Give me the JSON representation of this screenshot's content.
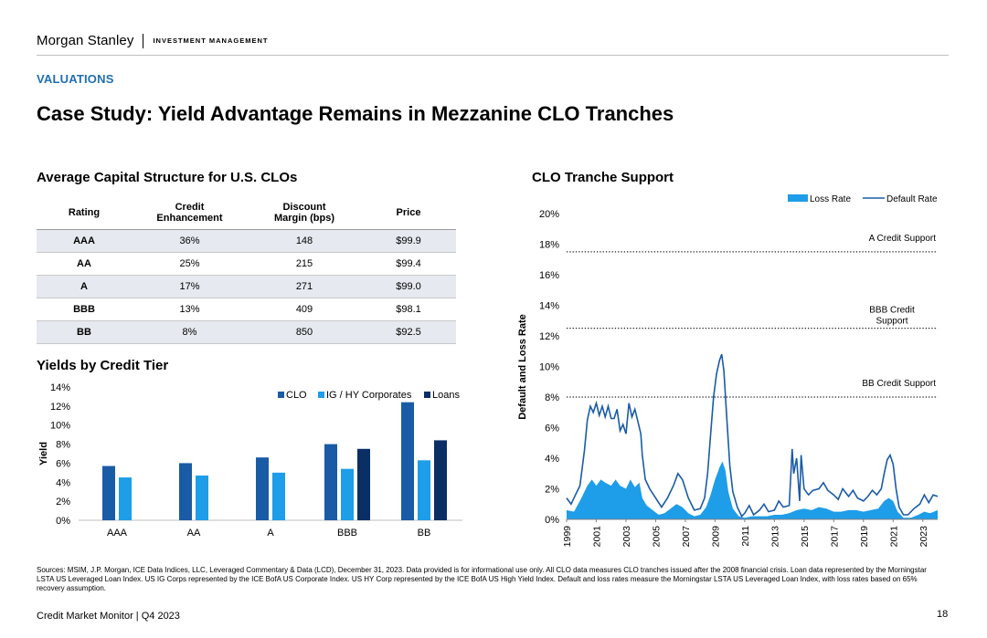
{
  "header": {
    "brand": "Morgan Stanley",
    "division": "INVESTMENT MANAGEMENT"
  },
  "section_label": "VALUATIONS",
  "page_title": "Case Study: Yield Advantage Remains in Mezzanine CLO Tranches",
  "table": {
    "title": "Average Capital Structure for U.S. CLOs",
    "headers": [
      "Rating",
      "Credit\nEnhancement",
      "Discount\nMargin (bps)",
      "Price"
    ],
    "rows": [
      [
        "AAA",
        "36%",
        "148",
        "$99.9"
      ],
      [
        "AA",
        "25%",
        "215",
        "$99.4"
      ],
      [
        "A",
        "17%",
        "271",
        "$99.0"
      ],
      [
        "BBB",
        "13%",
        "409",
        "$98.1"
      ],
      [
        "BB",
        "8%",
        "850",
        "$92.5"
      ]
    ]
  },
  "colors": {
    "clo": "#1a5ba6",
    "ig_hy": "#1e9de8",
    "loans": "#0b2f64",
    "accent": "#1f6fb2"
  },
  "chart_data": [
    {
      "type": "bar",
      "title": "Yields by Credit Tier",
      "ylabel": "Yield",
      "ylim": [
        0,
        14
      ],
      "yticks": [
        "0%",
        "2%",
        "4%",
        "6%",
        "8%",
        "10%",
        "12%",
        "14%"
      ],
      "categories": [
        "AAA",
        "AA",
        "A",
        "BBB",
        "BB"
      ],
      "series": [
        {
          "name": "CLO",
          "values": [
            5.7,
            6.0,
            6.6,
            8.0,
            12.4
          ]
        },
        {
          "name": "IG / HY Corporates",
          "values": [
            4.5,
            4.7,
            5.0,
            5.4,
            6.3
          ]
        },
        {
          "name": "Loans",
          "values": [
            null,
            null,
            null,
            7.5,
            8.4
          ]
        }
      ],
      "legend": "top-right"
    },
    {
      "type": "line",
      "title": "CLO Tranche Support",
      "ylabel": "Default and Loss Rate",
      "ylim": [
        0,
        20
      ],
      "yticks": [
        "0%",
        "2%",
        "4%",
        "6%",
        "8%",
        "10%",
        "12%",
        "14%",
        "16%",
        "18%",
        "20%"
      ],
      "xticks": [
        "1999",
        "2001",
        "2003",
        "2005",
        "2007",
        "2009",
        "2011",
        "2013",
        "2015",
        "2017",
        "2019",
        "2021",
        "2023"
      ],
      "xlim": [
        1999,
        2024
      ],
      "legend": "top-right",
      "series": [
        {
          "name": "Default Rate",
          "points": [
            [
              1999.0,
              1.4
            ],
            [
              1999.3,
              1.0
            ],
            [
              1999.6,
              1.6
            ],
            [
              1999.9,
              2.2
            ],
            [
              2000.2,
              4.5
            ],
            [
              2000.4,
              6.5
            ],
            [
              2000.6,
              7.4
            ],
            [
              2000.8,
              7.0
            ],
            [
              2001.0,
              7.6
            ],
            [
              2001.2,
              6.8
            ],
            [
              2001.4,
              7.4
            ],
            [
              2001.6,
              6.7
            ],
            [
              2001.8,
              7.4
            ],
            [
              2002.0,
              6.6
            ],
            [
              2002.2,
              6.6
            ],
            [
              2002.4,
              7.2
            ],
            [
              2002.6,
              5.8
            ],
            [
              2002.8,
              6.2
            ],
            [
              2003.0,
              5.6
            ],
            [
              2003.2,
              7.6
            ],
            [
              2003.4,
              6.7
            ],
            [
              2003.6,
              7.2
            ],
            [
              2003.8,
              6.4
            ],
            [
              2004.0,
              5.6
            ],
            [
              2004.1,
              4.2
            ],
            [
              2004.3,
              2.6
            ],
            [
              2004.6,
              2.0
            ],
            [
              2005.0,
              1.4
            ],
            [
              2005.4,
              0.8
            ],
            [
              2005.8,
              1.4
            ],
            [
              2006.2,
              2.2
            ],
            [
              2006.5,
              3.0
            ],
            [
              2006.8,
              2.6
            ],
            [
              2007.2,
              1.4
            ],
            [
              2007.6,
              0.6
            ],
            [
              2008.0,
              0.7
            ],
            [
              2008.3,
              1.4
            ],
            [
              2008.5,
              3.0
            ],
            [
              2008.7,
              5.5
            ],
            [
              2008.9,
              8.0
            ],
            [
              2009.1,
              9.5
            ],
            [
              2009.3,
              10.4
            ],
            [
              2009.45,
              10.8
            ],
            [
              2009.6,
              9.7
            ],
            [
              2009.8,
              6.5
            ],
            [
              2010.0,
              3.5
            ],
            [
              2010.2,
              1.8
            ],
            [
              2010.5,
              0.8
            ],
            [
              2010.8,
              0.2
            ],
            [
              2011.0,
              0.4
            ],
            [
              2011.3,
              0.9
            ],
            [
              2011.6,
              0.3
            ],
            [
              2012.0,
              0.6
            ],
            [
              2012.3,
              1.0
            ],
            [
              2012.6,
              0.5
            ],
            [
              2013.0,
              0.6
            ],
            [
              2013.3,
              1.2
            ],
            [
              2013.6,
              0.8
            ],
            [
              2014.0,
              0.9
            ],
            [
              2014.2,
              4.6
            ],
            [
              2014.3,
              3.0
            ],
            [
              2014.5,
              4.0
            ],
            [
              2014.7,
              1.2
            ],
            [
              2014.8,
              4.2
            ],
            [
              2015.0,
              2.0
            ],
            [
              2015.3,
              1.6
            ],
            [
              2015.6,
              1.9
            ],
            [
              2016.0,
              2.0
            ],
            [
              2016.3,
              2.4
            ],
            [
              2016.6,
              1.9
            ],
            [
              2017.0,
              1.6
            ],
            [
              2017.3,
              1.3
            ],
            [
              2017.6,
              2.0
            ],
            [
              2018.0,
              1.5
            ],
            [
              2018.3,
              1.9
            ],
            [
              2018.6,
              1.4
            ],
            [
              2019.0,
              1.2
            ],
            [
              2019.3,
              1.5
            ],
            [
              2019.6,
              1.9
            ],
            [
              2019.9,
              1.6
            ],
            [
              2020.2,
              2.0
            ],
            [
              2020.4,
              3.0
            ],
            [
              2020.6,
              3.9
            ],
            [
              2020.8,
              4.2
            ],
            [
              2021.0,
              3.6
            ],
            [
              2021.2,
              2.0
            ],
            [
              2021.4,
              0.8
            ],
            [
              2021.7,
              0.3
            ],
            [
              2022.0,
              0.3
            ],
            [
              2022.4,
              0.7
            ],
            [
              2022.8,
              1.0
            ],
            [
              2023.1,
              1.6
            ],
            [
              2023.4,
              1.1
            ],
            [
              2023.7,
              1.6
            ],
            [
              2024.0,
              1.5
            ]
          ]
        },
        {
          "name": "Loss Rate",
          "points": [
            [
              1999.0,
              0.6
            ],
            [
              1999.5,
              0.5
            ],
            [
              2000.0,
              1.4
            ],
            [
              2000.4,
              2.2
            ],
            [
              2000.7,
              2.6
            ],
            [
              2001.0,
              2.2
            ],
            [
              2001.3,
              2.6
            ],
            [
              2001.6,
              2.4
            ],
            [
              2002.0,
              2.2
            ],
            [
              2002.3,
              2.6
            ],
            [
              2002.6,
              2.2
            ],
            [
              2003.0,
              2.0
            ],
            [
              2003.3,
              2.6
            ],
            [
              2003.6,
              2.1
            ],
            [
              2003.9,
              2.4
            ],
            [
              2004.1,
              1.4
            ],
            [
              2004.4,
              0.9
            ],
            [
              2004.8,
              0.6
            ],
            [
              2005.2,
              0.3
            ],
            [
              2005.6,
              0.4
            ],
            [
              2006.0,
              0.7
            ],
            [
              2006.4,
              1.0
            ],
            [
              2006.8,
              0.8
            ],
            [
              2007.2,
              0.4
            ],
            [
              2007.6,
              0.2
            ],
            [
              2008.0,
              0.3
            ],
            [
              2008.4,
              0.8
            ],
            [
              2008.7,
              1.6
            ],
            [
              2009.0,
              2.6
            ],
            [
              2009.3,
              3.4
            ],
            [
              2009.5,
              3.8
            ],
            [
              2009.7,
              3.2
            ],
            [
              2009.9,
              1.8
            ],
            [
              2010.2,
              0.7
            ],
            [
              2010.6,
              0.2
            ],
            [
              2011.0,
              0.1
            ],
            [
              2011.5,
              0.2
            ],
            [
              2012.0,
              0.2
            ],
            [
              2012.5,
              0.2
            ],
            [
              2013.0,
              0.3
            ],
            [
              2013.5,
              0.3
            ],
            [
              2014.0,
              0.4
            ],
            [
              2014.5,
              0.6
            ],
            [
              2015.0,
              0.7
            ],
            [
              2015.5,
              0.6
            ],
            [
              2016.0,
              0.8
            ],
            [
              2016.5,
              0.7
            ],
            [
              2017.0,
              0.5
            ],
            [
              2017.5,
              0.5
            ],
            [
              2018.0,
              0.6
            ],
            [
              2018.5,
              0.6
            ],
            [
              2019.0,
              0.5
            ],
            [
              2019.5,
              0.6
            ],
            [
              2020.0,
              0.7
            ],
            [
              2020.4,
              1.2
            ],
            [
              2020.7,
              1.4
            ],
            [
              2021.0,
              1.2
            ],
            [
              2021.3,
              0.5
            ],
            [
              2021.7,
              0.1
            ],
            [
              2022.2,
              0.1
            ],
            [
              2022.7,
              0.3
            ],
            [
              2023.1,
              0.5
            ],
            [
              2023.5,
              0.4
            ],
            [
              2024.0,
              0.6
            ]
          ]
        }
      ],
      "support_levels": [
        {
          "label": "A Credit Support",
          "value": 17.5
        },
        {
          "label": "BBB Credit Support",
          "value": 12.5
        },
        {
          "label": "BB Credit Support",
          "value": 8.0
        }
      ]
    }
  ],
  "footnote": "Sources: MSIM, J.P. Morgan, ICE Data Indices, LLC, Leveraged Commentary & Data (LCD), December 31, 2023. Data provided is for informational use only. All CLO data measures CLO tranches issued after the 2008 financial crisis. Loan data represented by the Morningstar LSTA US Leveraged Loan Index. US IG Corps represented by the ICE BofA US Corporate Index. US HY Corp represented by the ICE BofA US High Yield Index. Default and loss rates measure the Morningstar LSTA US Leveraged Loan Index, with loss rates based on 65% recovery assumption.",
  "footer": {
    "left": "Credit Market Monitor | Q4 2023",
    "page": "18"
  }
}
